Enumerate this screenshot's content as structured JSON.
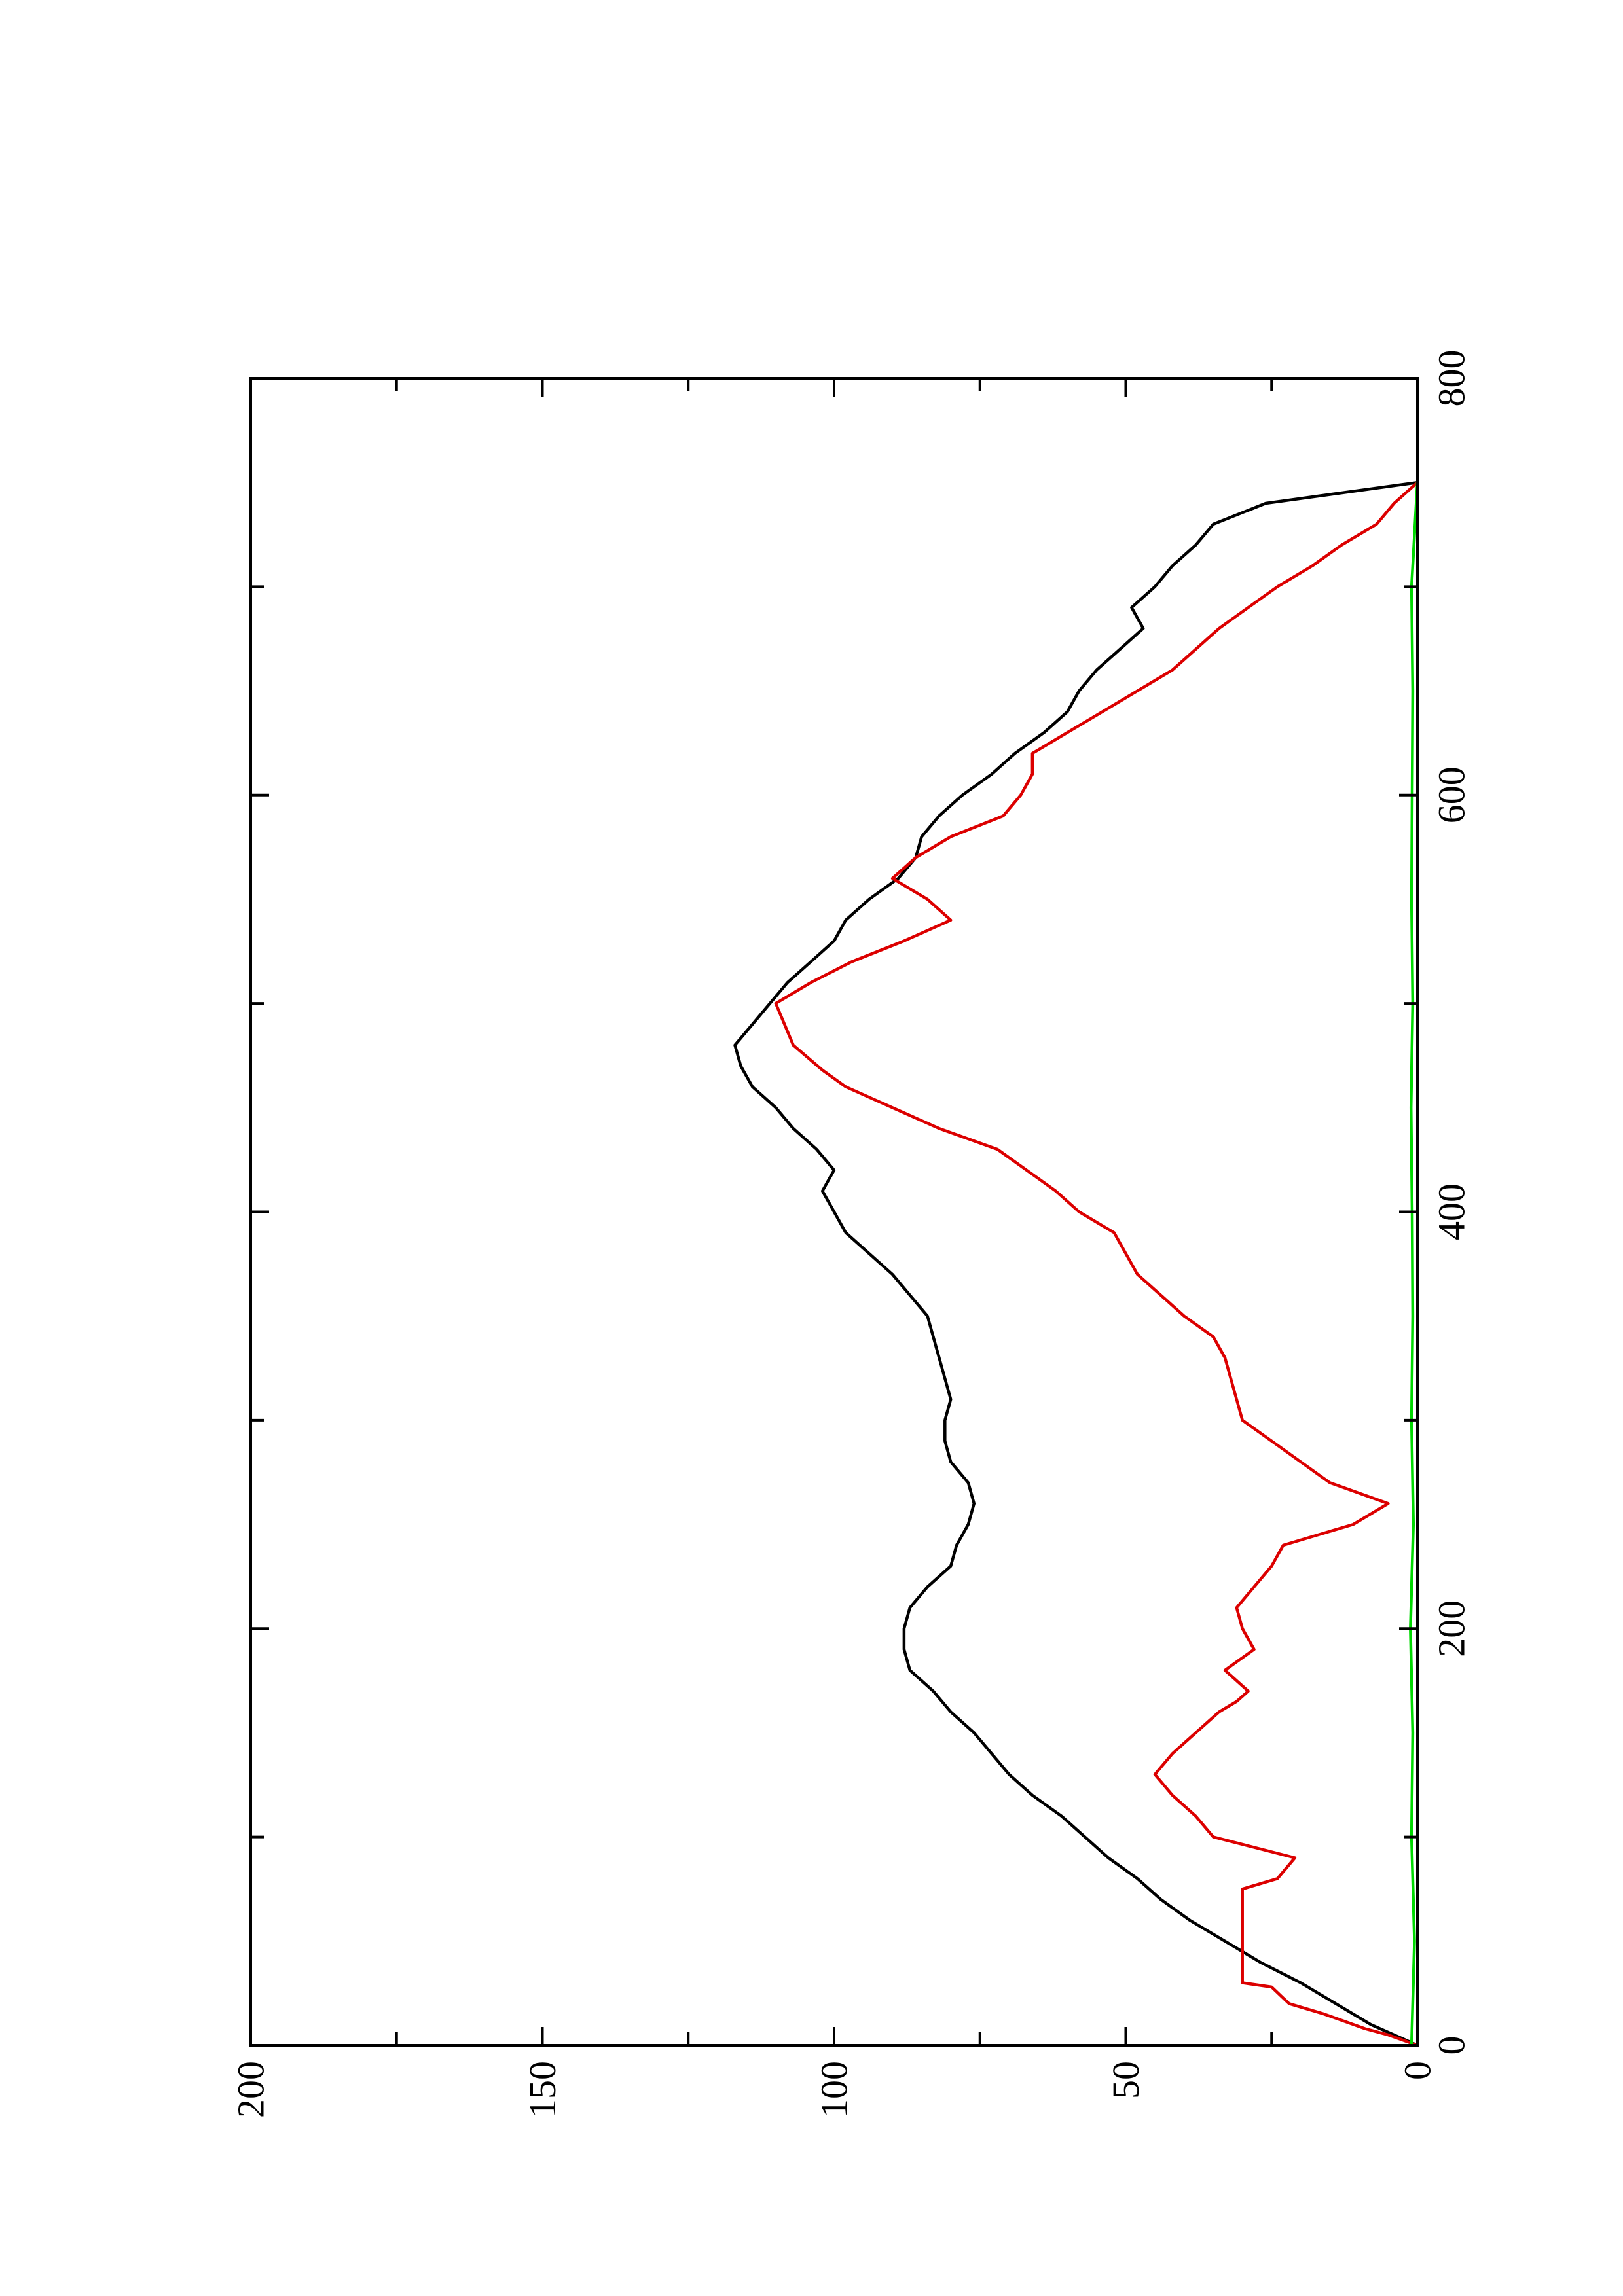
{
  "chart_data": {
    "type": "line",
    "xlim": [
      0,
      800
    ],
    "ylim": [
      0,
      200
    ],
    "x_major_ticks": [
      0,
      200,
      400,
      600,
      800
    ],
    "x_minor_ticks": [
      100,
      300,
      500,
      700
    ],
    "y_major_ticks": [
      0,
      50,
      100,
      150,
      200
    ],
    "y_minor_ticks": [
      25,
      75,
      125,
      175
    ],
    "x_tick_labels": [
      "0",
      "200",
      "400",
      "600",
      "800"
    ],
    "y_tick_labels": [
      "0",
      "50",
      "100",
      "150",
      "200"
    ],
    "grid": false,
    "orientation": "rotated 90 degrees counter-clockwise on page",
    "series": [
      {
        "color": "#000000",
        "x": [
          0,
          10,
          20,
          30,
          40,
          50,
          60,
          70,
          80,
          90,
          100,
          110,
          120,
          130,
          140,
          150,
          160,
          170,
          180,
          190,
          200,
          210,
          220,
          230,
          240,
          250,
          260,
          270,
          280,
          290,
          300,
          310,
          320,
          330,
          340,
          350,
          360,
          370,
          380,
          390,
          400,
          410,
          420,
          430,
          440,
          450,
          460,
          470,
          480,
          490,
          500,
          510,
          520,
          530,
          540,
          550,
          560,
          570,
          580,
          590,
          600,
          610,
          620,
          630,
          640,
          650,
          660,
          670,
          680,
          690,
          700,
          710,
          720,
          730,
          740,
          750
        ],
        "y": [
          0,
          8,
          14,
          20,
          27,
          33,
          39,
          44,
          48,
          53,
          57,
          61,
          66,
          70,
          73,
          76,
          80,
          83,
          87,
          88,
          88,
          87,
          84,
          80,
          79,
          77,
          76,
          77,
          80,
          81,
          81,
          80,
          81,
          82,
          83,
          84,
          87,
          90,
          94,
          98,
          100,
          102,
          100,
          103,
          107,
          110,
          114,
          116,
          117,
          114,
          111,
          108,
          104,
          100,
          98,
          94,
          89,
          86,
          85,
          82,
          78,
          73,
          69,
          64,
          60,
          58,
          55,
          51,
          47,
          49,
          45,
          42,
          38,
          35,
          26,
          0
        ]
      },
      {
        "color": "#dc0000",
        "x": [
          0,
          5,
          8,
          15,
          20,
          28,
          30,
          50,
          60,
          75,
          80,
          90,
          95,
          100,
          110,
          120,
          130,
          140,
          150,
          160,
          165,
          170,
          180,
          190,
          200,
          210,
          220,
          230,
          240,
          250,
          260,
          270,
          280,
          290,
          300,
          320,
          330,
          340,
          350,
          360,
          370,
          380,
          390,
          400,
          410,
          420,
          430,
          440,
          450,
          460,
          468,
          480,
          500,
          510,
          520,
          530,
          540,
          550,
          560,
          570,
          580,
          590,
          600,
          610,
          620,
          630,
          640,
          650,
          660,
          670,
          680,
          690,
          700,
          710,
          720,
          730,
          740,
          750
        ],
        "y": [
          0,
          5,
          9,
          16,
          22,
          25,
          30,
          30,
          30,
          30,
          24,
          21,
          28,
          35,
          38,
          42,
          45,
          42,
          38,
          34,
          31,
          29,
          33,
          28,
          30,
          31,
          28,
          25,
          23,
          11,
          5,
          15,
          20,
          25,
          30,
          32,
          33,
          35,
          40,
          44,
          48,
          50,
          52,
          58,
          62,
          67,
          72,
          82,
          90,
          98,
          102,
          107,
          110,
          104,
          97,
          88,
          80,
          84,
          90,
          86,
          80,
          71,
          68,
          66,
          66,
          60,
          54,
          48,
          42,
          38,
          34,
          29,
          24,
          18,
          13,
          7,
          4,
          0
        ]
      },
      {
        "color": "#00d800",
        "x": [
          0,
          50,
          100,
          150,
          200,
          250,
          300,
          350,
          400,
          450,
          500,
          550,
          600,
          650,
          700,
          750
        ],
        "y": [
          1,
          0.5,
          1,
          0.8,
          1.2,
          0.7,
          1,
          0.8,
          0.9,
          1.1,
          0.8,
          1,
          0.9,
          0.8,
          1,
          0
        ]
      }
    ]
  }
}
